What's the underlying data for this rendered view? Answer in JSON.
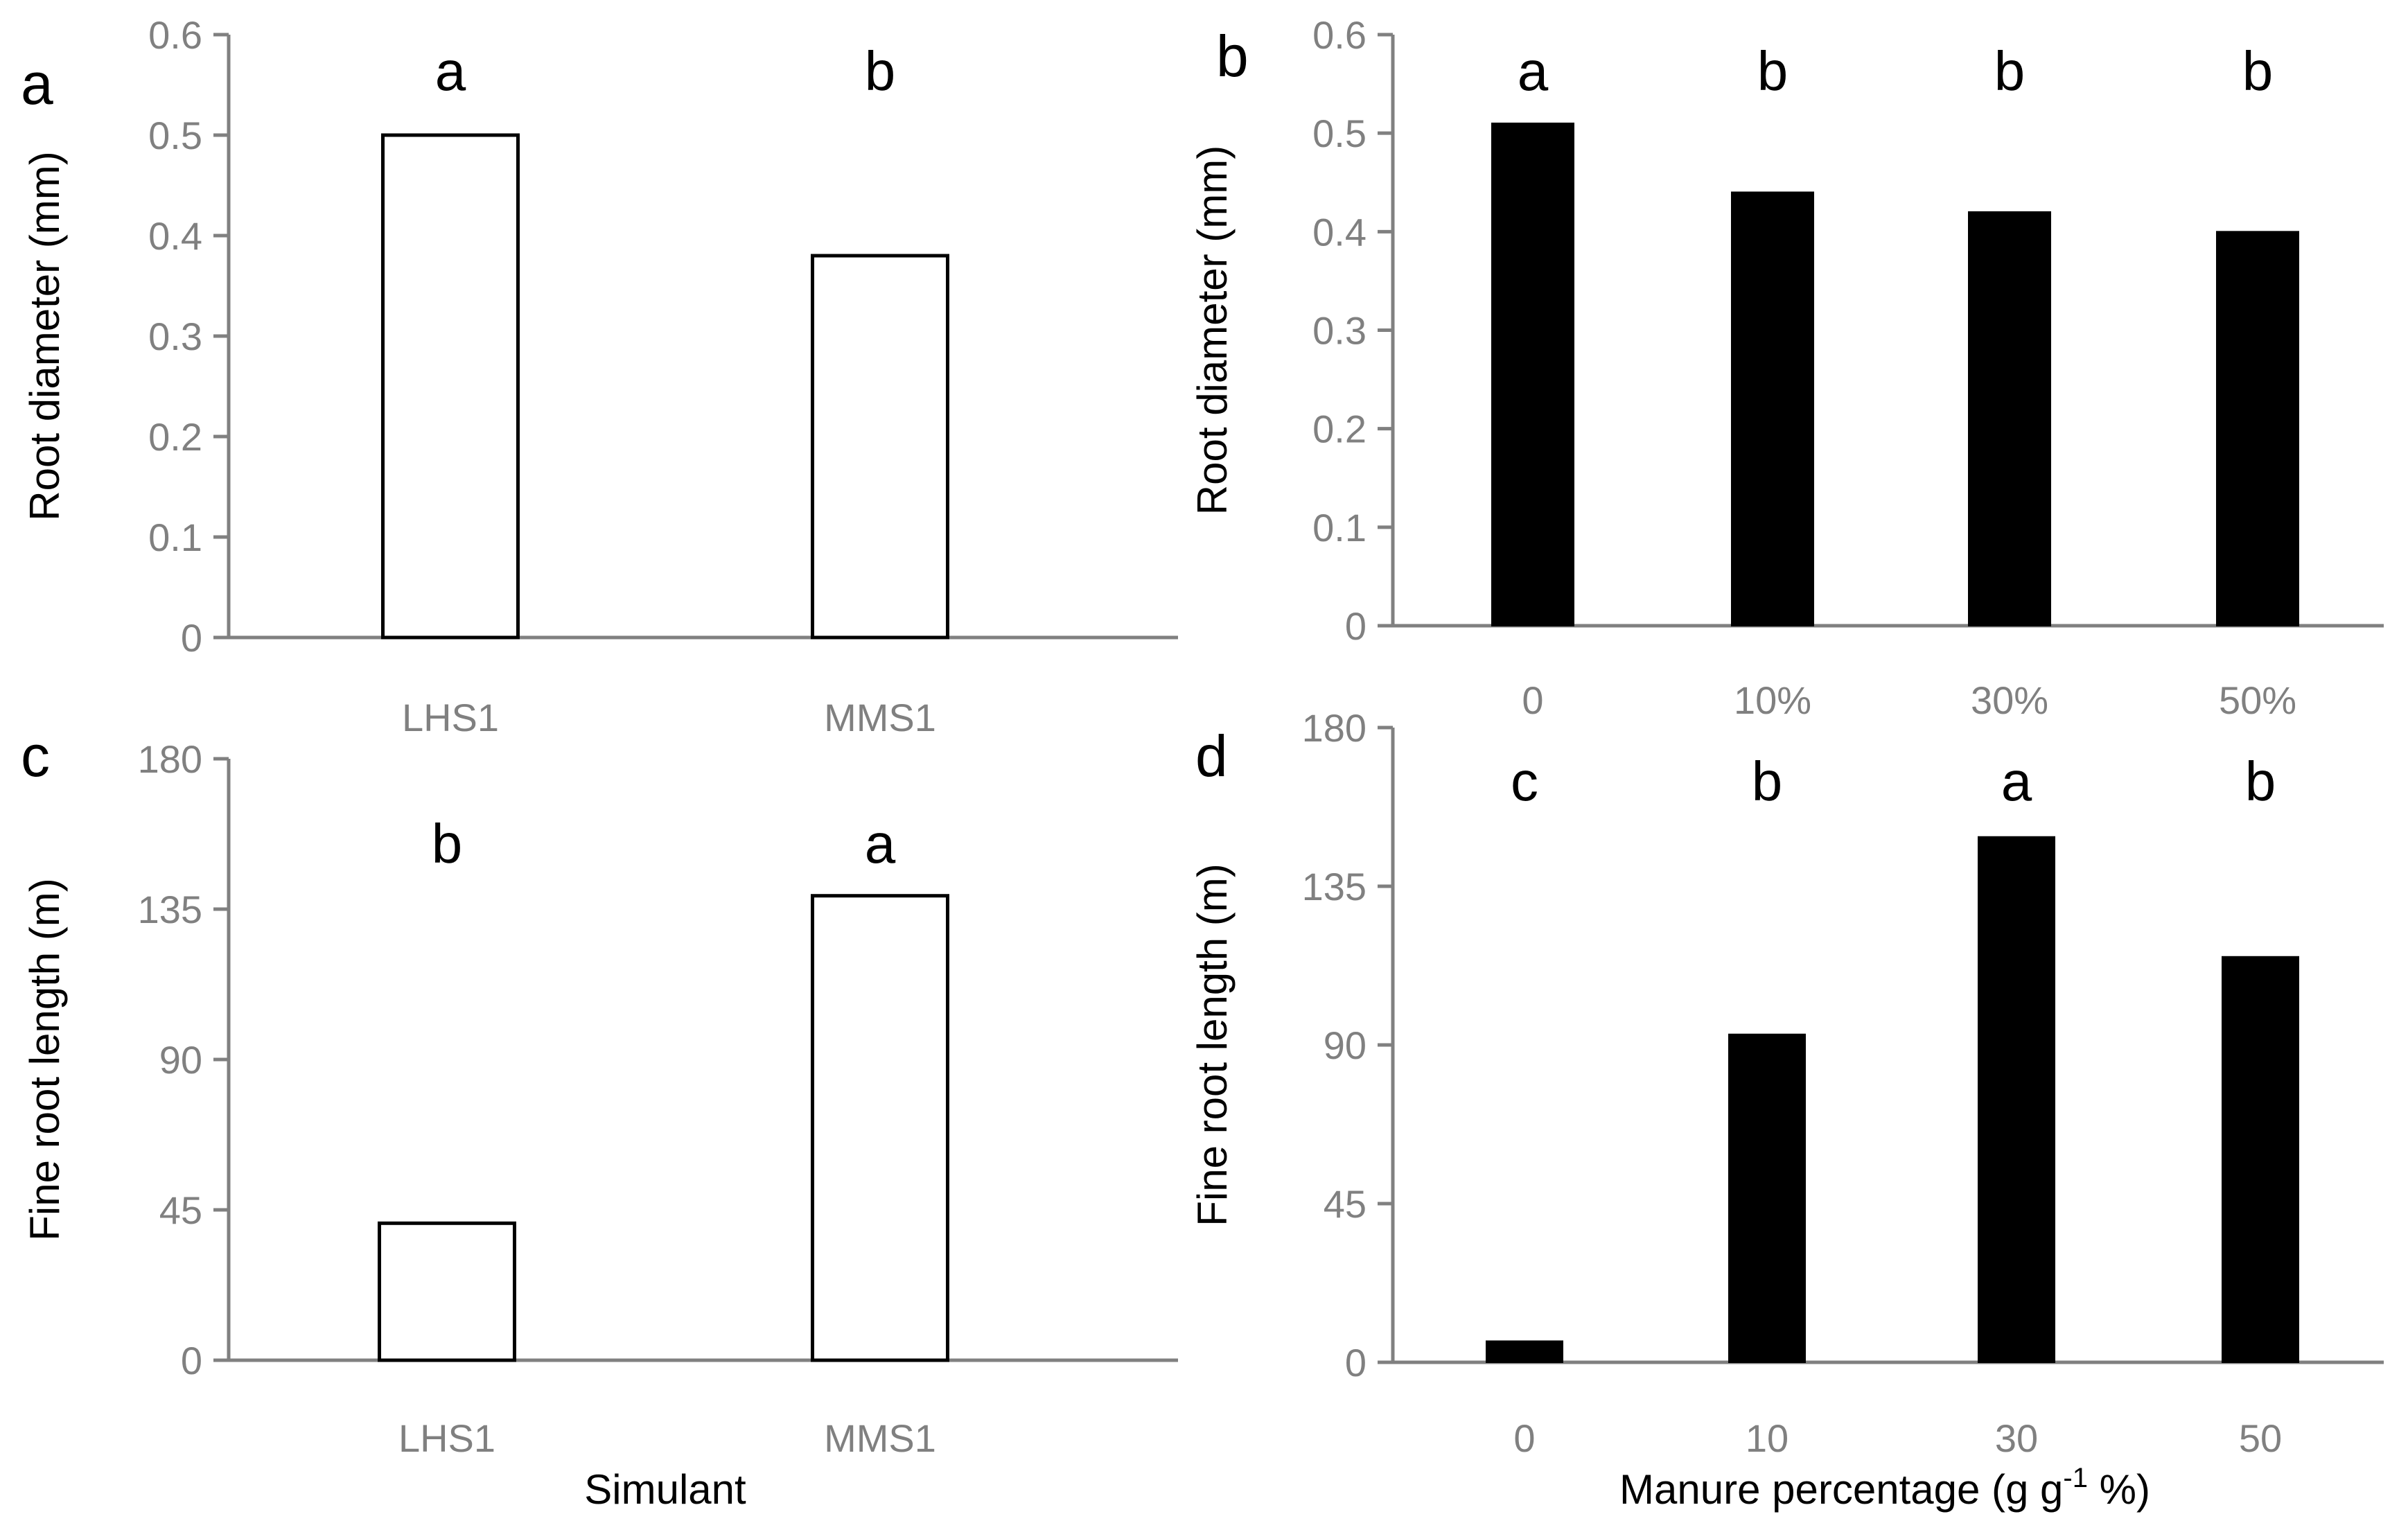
{
  "chart_data": [
    {
      "panel": "a",
      "type": "bar",
      "categories": [
        "LHS1",
        "MMS1"
      ],
      "values": [
        0.5,
        0.38
      ],
      "significance": [
        "a",
        "b"
      ],
      "bar_style": "outline",
      "ylabel": "Root diameter (mm)",
      "xlabel": "",
      "ylim": [
        0,
        0.6
      ],
      "yticks": [
        "0",
        "0.1",
        "0.2",
        "0.3",
        "0.4",
        "0.5",
        "0.6"
      ],
      "grid": false
    },
    {
      "panel": "b",
      "type": "bar",
      "categories": [
        "0",
        "10%",
        "30%",
        "50%"
      ],
      "values": [
        0.51,
        0.44,
        0.42,
        0.4
      ],
      "significance": [
        "a",
        "b",
        "b",
        "b"
      ],
      "bar_style": "filled",
      "ylabel": "Root diameter (mm)",
      "xlabel": "",
      "ylim": [
        0,
        0.6
      ],
      "yticks": [
        "0",
        "0.1",
        "0.2",
        "0.3",
        "0.4",
        "0.5",
        "0.6"
      ],
      "grid": false
    },
    {
      "panel": "c",
      "type": "bar",
      "categories": [
        "LHS1",
        "MMS1"
      ],
      "values": [
        41,
        139
      ],
      "significance": [
        "b",
        "a"
      ],
      "bar_style": "outline",
      "ylabel": "Fine root length (m)",
      "xlabel": "Simulant",
      "ylim": [
        0,
        180
      ],
      "yticks": [
        "0",
        "45",
        "90",
        "135",
        "180"
      ],
      "grid": false
    },
    {
      "panel": "d",
      "type": "bar",
      "categories": [
        "0",
        "10",
        "30",
        "50"
      ],
      "values": [
        6,
        93,
        149,
        115
      ],
      "significance": [
        "c",
        "b",
        "a",
        "b"
      ],
      "bar_style": "filled",
      "ylabel": "Fine root length (m)",
      "xlabel": "Manure percentage (g g",
      "xlabel_sup": "-1",
      "xlabel_end": " %)",
      "ylim": [
        0,
        180
      ],
      "yticks": [
        "0",
        "45",
        "90",
        "135",
        "180"
      ],
      "grid": false
    }
  ]
}
